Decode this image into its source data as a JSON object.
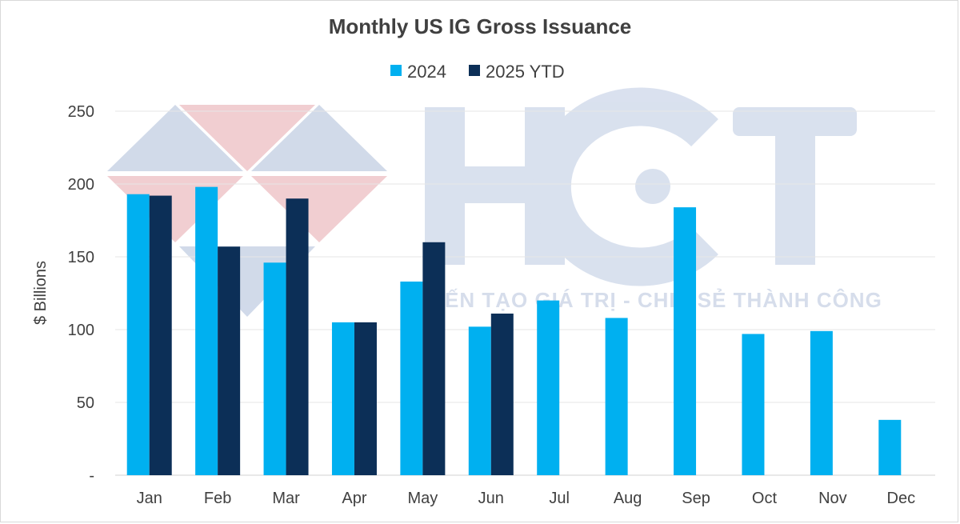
{
  "chart_data": {
    "type": "bar",
    "title": "Monthly US IG Gross Issuance",
    "xlabel": "",
    "ylabel": "$ Billions",
    "categories": [
      "Jan",
      "Feb",
      "Mar",
      "Apr",
      "May",
      "Jun",
      "Jul",
      "Aug",
      "Sep",
      "Oct",
      "Nov",
      "Dec"
    ],
    "series": [
      {
        "name": "2024",
        "color": "#00b0f0",
        "values": [
          193,
          198,
          146,
          105,
          133,
          102,
          120,
          108,
          184,
          97,
          99,
          38
        ]
      },
      {
        "name": "2025 YTD",
        "color": "#0c2f57",
        "values": [
          192,
          157,
          190,
          105,
          160,
          111,
          null,
          null,
          null,
          null,
          null,
          null
        ]
      }
    ],
    "ylim": [
      0,
      250
    ],
    "yticks": [
      0,
      50,
      100,
      150,
      200,
      250
    ],
    "ytick_labels": [
      "-",
      "50",
      "100",
      "150",
      "200",
      "250"
    ],
    "grid": true,
    "legend": "top-center"
  },
  "watermark": {
    "logo_text": "HCT",
    "tagline": "KIẾN TẠO GIÁ TRỊ - CHIA SẺ THÀNH CÔNG"
  }
}
